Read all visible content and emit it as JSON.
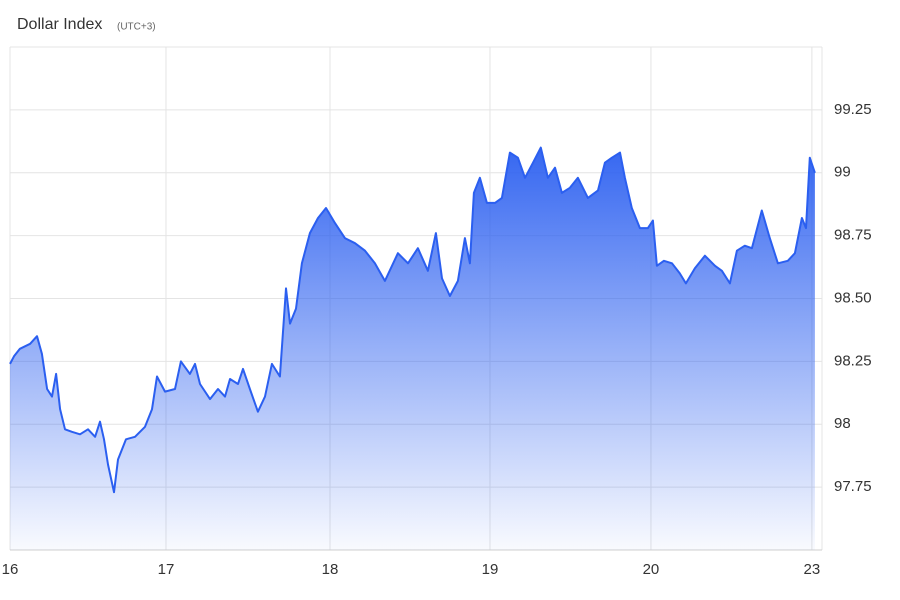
{
  "chart_data": {
    "type": "area",
    "title": "Dollar Index",
    "subtitle": "(UTC+3)",
    "color": "#2b5ff0",
    "grid": true,
    "x": [
      0,
      0.025,
      0.062,
      0.125,
      0.168,
      0.199,
      0.231,
      0.262,
      0.287,
      0.312,
      0.343,
      0.386,
      0.436,
      0.486,
      0.53,
      0.561,
      0.586,
      0.611,
      0.648,
      0.673,
      0.723,
      0.779,
      0.841,
      0.885,
      0.916,
      0.966,
      1.028,
      1.065,
      1.121,
      1.153,
      1.184,
      1.246,
      1.296,
      1.34,
      1.371,
      1.421,
      1.452,
      1.495,
      1.545,
      1.589,
      1.632,
      1.682,
      1.72,
      1.745,
      1.782,
      1.819,
      1.869,
      1.919,
      1.969,
      2.025,
      2.087,
      2.15,
      2.212,
      2.274,
      2.336,
      2.417,
      2.48,
      2.542,
      2.604,
      2.654,
      2.692,
      2.741,
      2.791,
      2.835,
      2.866,
      2.891,
      2.928,
      2.972,
      3.022,
      3.065,
      3.115,
      3.165,
      3.209,
      3.259,
      3.308,
      3.352,
      3.396,
      3.439,
      3.489,
      3.539,
      3.601,
      3.664,
      3.707,
      3.751,
      3.801,
      3.832,
      3.875,
      3.925,
      3.975,
      4.006,
      4.031,
      4.075,
      4.125,
      4.174,
      4.212,
      4.268,
      4.33,
      4.393,
      4.436,
      4.486,
      4.53,
      4.579,
      4.623,
      4.685,
      4.735,
      4.785,
      4.847,
      4.891,
      4.935,
      4.96,
      4.984,
      5.016
    ],
    "values": [
      98.24,
      98.27,
      98.3,
      98.32,
      98.35,
      98.28,
      98.14,
      98.11,
      98.2,
      98.06,
      97.98,
      97.97,
      97.96,
      97.98,
      97.95,
      98.01,
      97.94,
      97.84,
      97.73,
      97.86,
      97.94,
      97.95,
      97.99,
      98.06,
      98.19,
      98.13,
      98.14,
      98.25,
      98.2,
      98.24,
      98.16,
      98.1,
      98.14,
      98.11,
      98.18,
      98.16,
      98.22,
      98.14,
      98.05,
      98.11,
      98.24,
      98.19,
      98.54,
      98.4,
      98.46,
      98.64,
      98.76,
      98.82,
      98.86,
      98.8,
      98.74,
      98.72,
      98.69,
      98.64,
      98.57,
      98.68,
      98.64,
      98.7,
      98.61,
      98.76,
      98.58,
      98.51,
      98.57,
      98.74,
      98.64,
      98.92,
      98.98,
      98.88,
      98.88,
      98.9,
      99.08,
      99.06,
      98.98,
      99.04,
      99.1,
      98.98,
      99.02,
      98.92,
      98.94,
      98.98,
      98.9,
      98.93,
      99.04,
      99.06,
      99.08,
      98.98,
      98.86,
      98.78,
      98.78,
      98.81,
      98.63,
      98.65,
      98.64,
      98.6,
      98.56,
      98.62,
      98.67,
      98.63,
      98.61,
      98.56,
      98.69,
      98.71,
      98.7,
      98.85,
      98.74,
      98.64,
      98.65,
      98.68,
      98.82,
      98.78,
      99.06,
      99.0
    ],
    "xlim": [
      0,
      5.06
    ],
    "xticks": [
      {
        "value": 0,
        "label": "16"
      },
      {
        "value": 0.972,
        "label": "17"
      },
      {
        "value": 1.994,
        "label": "18"
      },
      {
        "value": 2.991,
        "label": "19"
      },
      {
        "value": 3.994,
        "label": "20"
      },
      {
        "value": 4.997,
        "label": "23"
      }
    ],
    "ylim": [
      97.5,
      99.5
    ],
    "yticks": [
      97.75,
      98,
      98.25,
      {
        "value": 98.5,
        "label": "98.50"
      },
      98.75,
      99,
      99.25
    ]
  }
}
